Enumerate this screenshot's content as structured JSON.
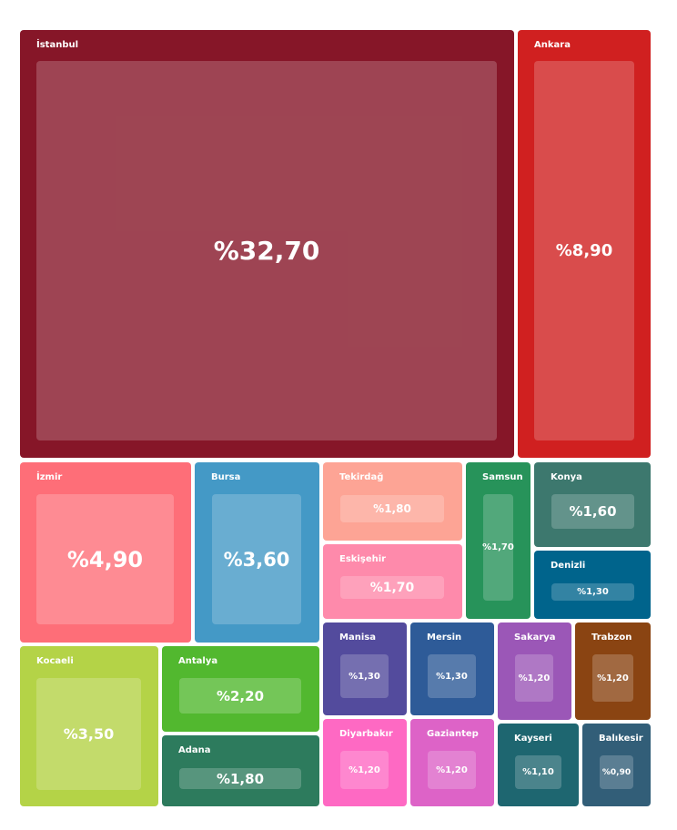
{
  "chart_data": {
    "type": "treemap",
    "value_prefix": "%",
    "items": [
      {
        "name": "İstanbul",
        "value": 32.7,
        "label": "%32,70",
        "color": "#861628"
      },
      {
        "name": "Ankara",
        "value": 8.9,
        "label": "%8,90",
        "color": "#d02020"
      },
      {
        "name": "İzmir",
        "value": 4.9,
        "label": "%4,90",
        "color": "#fe6e78"
      },
      {
        "name": "Bursa",
        "value": 3.6,
        "label": "%3,60",
        "color": "#4499c6"
      },
      {
        "name": "Tekirdağ",
        "value": 1.8,
        "label": "%1,80",
        "color": "#fda495"
      },
      {
        "name": "Eskişehir",
        "value": 1.7,
        "label": "%1,70",
        "color": "#fe8aab"
      },
      {
        "name": "Samsun",
        "value": 1.7,
        "label": "%1,70",
        "color": "#27935a"
      },
      {
        "name": "Konya",
        "value": 1.6,
        "label": "%1,60",
        "color": "#3d786e"
      },
      {
        "name": "Denizli",
        "value": 1.3,
        "label": "%1,30",
        "color": "#00648c"
      },
      {
        "name": "Kocaeli",
        "value": 3.5,
        "label": "%3,50",
        "color": "#b4d347"
      },
      {
        "name": "Antalya",
        "value": 2.2,
        "label": "%2,20",
        "color": "#52b82f"
      },
      {
        "name": "Adana",
        "value": 1.8,
        "label": "%1,80",
        "color": "#2d7b5d"
      },
      {
        "name": "Manisa",
        "value": 1.3,
        "label": "%1,30",
        "color": "#534b9d"
      },
      {
        "name": "Mersin",
        "value": 1.3,
        "label": "%1,30",
        "color": "#2e5b98"
      },
      {
        "name": "Sakarya",
        "value": 1.2,
        "label": "%1,20",
        "color": "#9b57b7"
      },
      {
        "name": "Trabzon",
        "value": 1.2,
        "label": "%1,20",
        "color": "#8a4412"
      },
      {
        "name": "Diyarbakır",
        "value": 1.2,
        "label": "%1,20",
        "color": "#fe69c3"
      },
      {
        "name": "Gaziantep",
        "value": 1.2,
        "label": "%1,20",
        "color": "#dd63c7"
      },
      {
        "name": "Kayseri",
        "value": 1.1,
        "label": "%1,10",
        "color": "#1e6670"
      },
      {
        "name": "Balıkesir",
        "value": 0.9,
        "label": "%0,90",
        "color": "#325e78"
      }
    ]
  }
}
